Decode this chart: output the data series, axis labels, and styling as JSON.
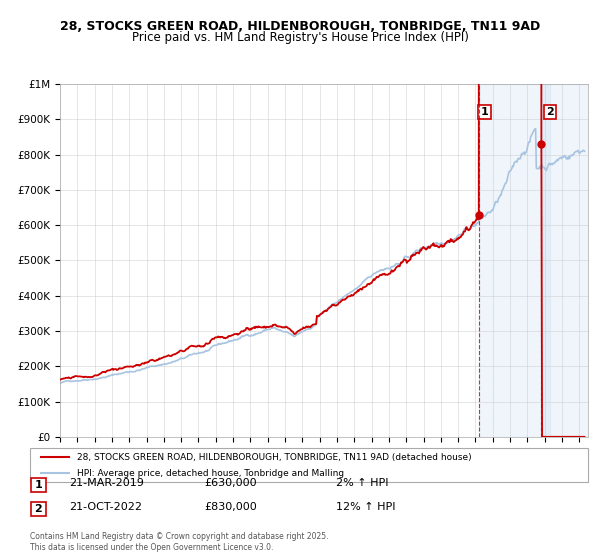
{
  "title1": "28, STOCKS GREEN ROAD, HILDENBOROUGH, TONBRIDGE, TN11 9AD",
  "title2": "Price paid vs. HM Land Registry's House Price Index (HPI)",
  "legend_line1": "28, STOCKS GREEN ROAD, HILDENBOROUGH, TONBRIDGE, TN11 9AD (detached house)",
  "legend_line2": "HPI: Average price, detached house, Tonbridge and Malling",
  "annotation1_label": "1",
  "annotation1_date": "21-MAR-2019",
  "annotation1_price": "£630,000",
  "annotation1_hpi": "2% ↑ HPI",
  "annotation2_label": "2",
  "annotation2_date": "21-OCT-2022",
  "annotation2_price": "£830,000",
  "annotation2_hpi": "12% ↑ HPI",
  "event1_year": 2019.22,
  "event1_value": 630000,
  "event2_year": 2022.8,
  "event2_value": 830000,
  "footer": "Contains HM Land Registry data © Crown copyright and database right 2025.\nThis data is licensed under the Open Government Licence v3.0.",
  "red_color": "#cc0000",
  "blue_color": "#a8c4e0",
  "background_color": "#e8f0f8",
  "ylim_max": 1000000,
  "xlim_min": 1995,
  "xlim_max": 2025.5
}
